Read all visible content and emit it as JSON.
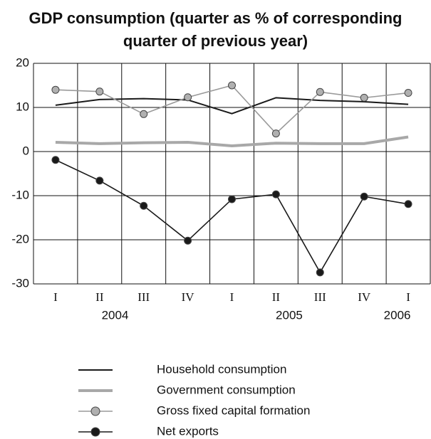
{
  "chart_data": {
    "type": "line",
    "title": "GDP consumption (quarter as % of corresponding quarter of previous year)",
    "categories": [
      "I",
      "II",
      "III",
      "IV",
      "I",
      "II",
      "III",
      "IV",
      "I"
    ],
    "year_labels": [
      "2004",
      "2005",
      "2006"
    ],
    "ylim": [
      -30,
      20
    ],
    "yticks": [
      -30,
      -20,
      -10,
      0,
      10,
      20
    ],
    "grid": true,
    "series": [
      {
        "name": "Household consumption",
        "color": "#1a1a1a",
        "marker": false,
        "values": [
          10.5,
          11.8,
          12.0,
          11.7,
          8.6,
          12.2,
          11.6,
          11.3,
          10.7
        ]
      },
      {
        "name": "Government consumption",
        "color": "#a8a8a8",
        "marker": false,
        "values": [
          2.1,
          1.8,
          2.0,
          2.1,
          1.3,
          1.9,
          1.8,
          1.8,
          3.3
        ]
      },
      {
        "name": "Gross fixed capital formation",
        "color": "#9a9a9a",
        "marker": true,
        "values": [
          14.0,
          13.6,
          8.5,
          12.3,
          15.0,
          4.1,
          13.5,
          12.2,
          13.3
        ]
      },
      {
        "name": "Net exports",
        "color": "#1a1a1a",
        "marker": true,
        "values": [
          -1.9,
          -6.6,
          -12.3,
          -20.2,
          -10.8,
          -9.7,
          -27.4,
          -10.2,
          -11.9
        ]
      }
    ]
  }
}
